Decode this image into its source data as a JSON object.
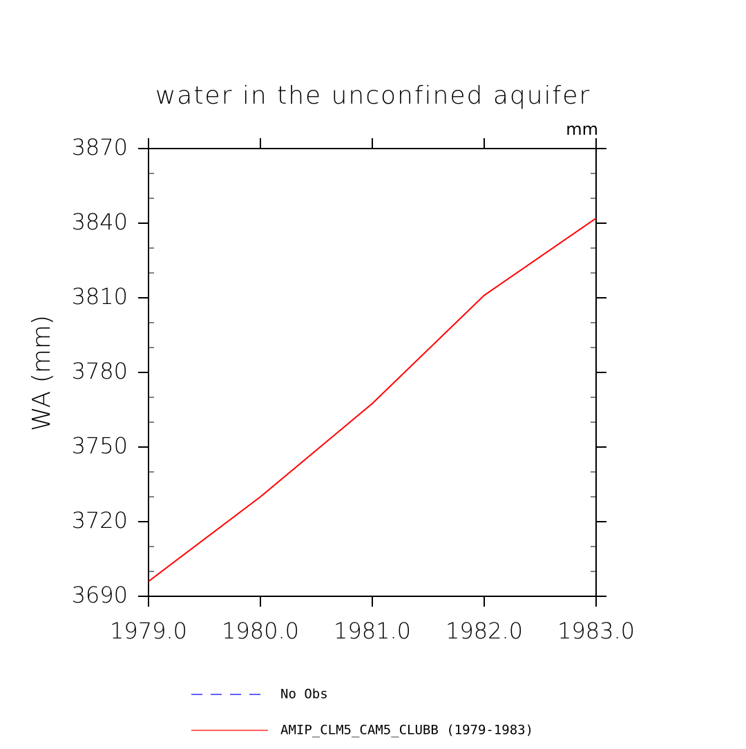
{
  "chart_data": {
    "type": "line",
    "title": "water in the unconfined aquifer",
    "units_label": "mm",
    "y_label": "WA  (mm)",
    "x": [
      1979,
      1980,
      1981,
      1982,
      1983
    ],
    "xlim": [
      1979,
      1983
    ],
    "xticks": [
      {
        "value": 1979,
        "label": "1979.0"
      },
      {
        "value": 1980,
        "label": "1980.0"
      },
      {
        "value": 1981,
        "label": "1981.0"
      },
      {
        "value": 1982,
        "label": "1982.0"
      },
      {
        "value": 1983,
        "label": "1983.0"
      }
    ],
    "ylim": [
      3690,
      3870
    ],
    "yticks": [
      3690,
      3720,
      3750,
      3780,
      3810,
      3840,
      3870
    ],
    "y_minor_ticks": [
      3700,
      3710,
      3730,
      3740,
      3760,
      3770,
      3790,
      3800,
      3820,
      3830,
      3850,
      3860
    ],
    "series": [
      {
        "name": "No Obs",
        "color": "#0000ff",
        "dashed": true,
        "values": [
          null,
          null,
          null,
          null,
          null
        ]
      },
      {
        "name": "AMIP_CLM5_CAM5_CLUBB (1979-1983)",
        "color": "#ff0000",
        "dashed": false,
        "values": [
          3696,
          3730,
          3767.5,
          3811,
          3842
        ]
      }
    ]
  }
}
